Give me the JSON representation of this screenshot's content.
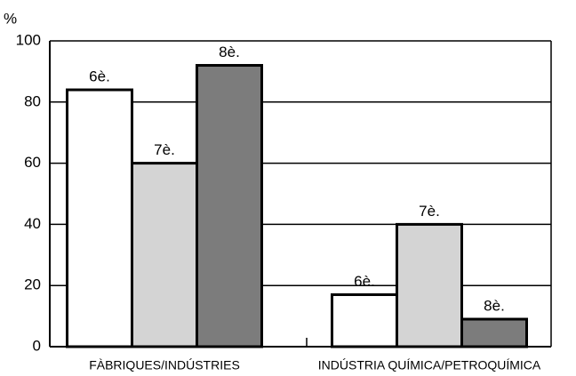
{
  "chart_data": {
    "type": "bar",
    "y_label": "%",
    "categories": [
      "FÀBRIQUES/INDÚSTRIES",
      "INDÚSTRIA QUÍMICA/PETROQUÍMICA"
    ],
    "series": [
      {
        "name": "6è.",
        "color": "#ffffff",
        "values": [
          84,
          17
        ]
      },
      {
        "name": "7è.",
        "color": "#d4d4d4",
        "values": [
          60,
          40
        ]
      },
      {
        "name": "8è.",
        "color": "#7c7c7c",
        "values": [
          92,
          9
        ]
      }
    ],
    "ylim": [
      0,
      100
    ],
    "yticks": [
      0,
      20,
      40,
      60,
      80,
      100
    ],
    "grid": true
  }
}
